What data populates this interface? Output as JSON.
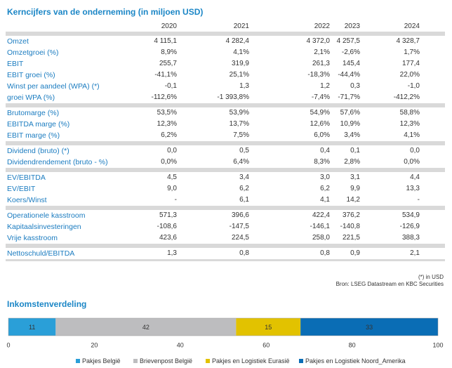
{
  "title": "Kerncijfers van de onderneming (in miljoen USD)",
  "table": {
    "columns": [
      "2020",
      "2021",
      "2022",
      "2023",
      "2024"
    ],
    "groups": [
      [
        [
          "Omzet",
          "4 115,1",
          "4 282,4",
          "4 372,0",
          "4 257,5",
          "4 328,7"
        ],
        [
          "Omzetgroei (%)",
          "8,9%",
          "4,1%",
          "2,1%",
          "-2,6%",
          "1,7%"
        ],
        [
          "EBIT",
          "255,7",
          "319,9",
          "261,3",
          "145,4",
          "177,4"
        ],
        [
          "EBIT groei (%)",
          "-41,1%",
          "25,1%",
          "-18,3%",
          "-44,4%",
          "22,0%"
        ],
        [
          "Winst per aandeel (WPA) (*)",
          "-0,1",
          "1,3",
          "1,2",
          "0,3",
          "-1,0"
        ],
        [
          "groei WPA (%)",
          "-112,6%",
          "-1 393,8%",
          "-7,4%",
          "-71,7%",
          "-412,2%"
        ]
      ],
      [
        [
          "Brutomarge (%)",
          "53,5%",
          "53,9%",
          "54,9%",
          "57,6%",
          "58,8%"
        ],
        [
          "EBITDA marge (%)",
          "12,3%",
          "13,7%",
          "12,6%",
          "10,9%",
          "12,3%"
        ],
        [
          "EBIT marge (%)",
          "6,2%",
          "7,5%",
          "6,0%",
          "3,4%",
          "4,1%"
        ]
      ],
      [
        [
          "Dividend (bruto) (*)",
          "0,0",
          "0,5",
          "0,4",
          "0,1",
          "0,0"
        ],
        [
          "Dividendrendement (bruto - %)",
          "0,0%",
          "6,4%",
          "8,3%",
          "2,8%",
          "0,0%"
        ]
      ],
      [
        [
          "EV/EBITDA",
          "4,5",
          "3,4",
          "3,0",
          "3,1",
          "4,4"
        ],
        [
          "EV/EBIT",
          "9,0",
          "6,2",
          "6,2",
          "9,9",
          "13,3"
        ],
        [
          "Koers/Winst",
          "-",
          "6,1",
          "4,1",
          "14,2",
          "-"
        ]
      ],
      [
        [
          "Operationele kasstroom",
          "571,3",
          "396,6",
          "422,4",
          "376,2",
          "534,9"
        ],
        [
          "Kapitaalsinvesteringen",
          "-108,6",
          "-147,5",
          "-146,1",
          "-140,8",
          "-126,9"
        ],
        [
          "Vrije kasstroom",
          "423,6",
          "224,5",
          "258,0",
          "221,5",
          "388,3"
        ]
      ],
      [
        [
          "Nettoschuld/EBITDA",
          "1,3",
          "0,8",
          "0,8",
          "0,9",
          "2,1"
        ]
      ]
    ],
    "notes": [
      "(*) in USD",
      "Bron: LSEG Datastream en KBC Securities"
    ]
  },
  "chart_data": {
    "type": "stacked-bar",
    "orientation": "horizontal",
    "title": "Inkomstenverdeling",
    "series": [
      {
        "name": "Pakjes België",
        "color": "#2a9fd8",
        "values": [
          11
        ]
      },
      {
        "name": "Brievenpost België",
        "color": "#bdbdbf",
        "values": [
          42
        ]
      },
      {
        "name": "Pakjes en Logistiek Eurasië",
        "color": "#e2c200",
        "values": [
          15
        ]
      },
      {
        "name": "Pakjes en Logistiek Noord_Amerika",
        "color": "#0a6db5",
        "values": [
          33
        ]
      }
    ],
    "xlim": [
      0,
      100
    ],
    "xticks": [
      0,
      20,
      40,
      60,
      80,
      100
    ]
  }
}
